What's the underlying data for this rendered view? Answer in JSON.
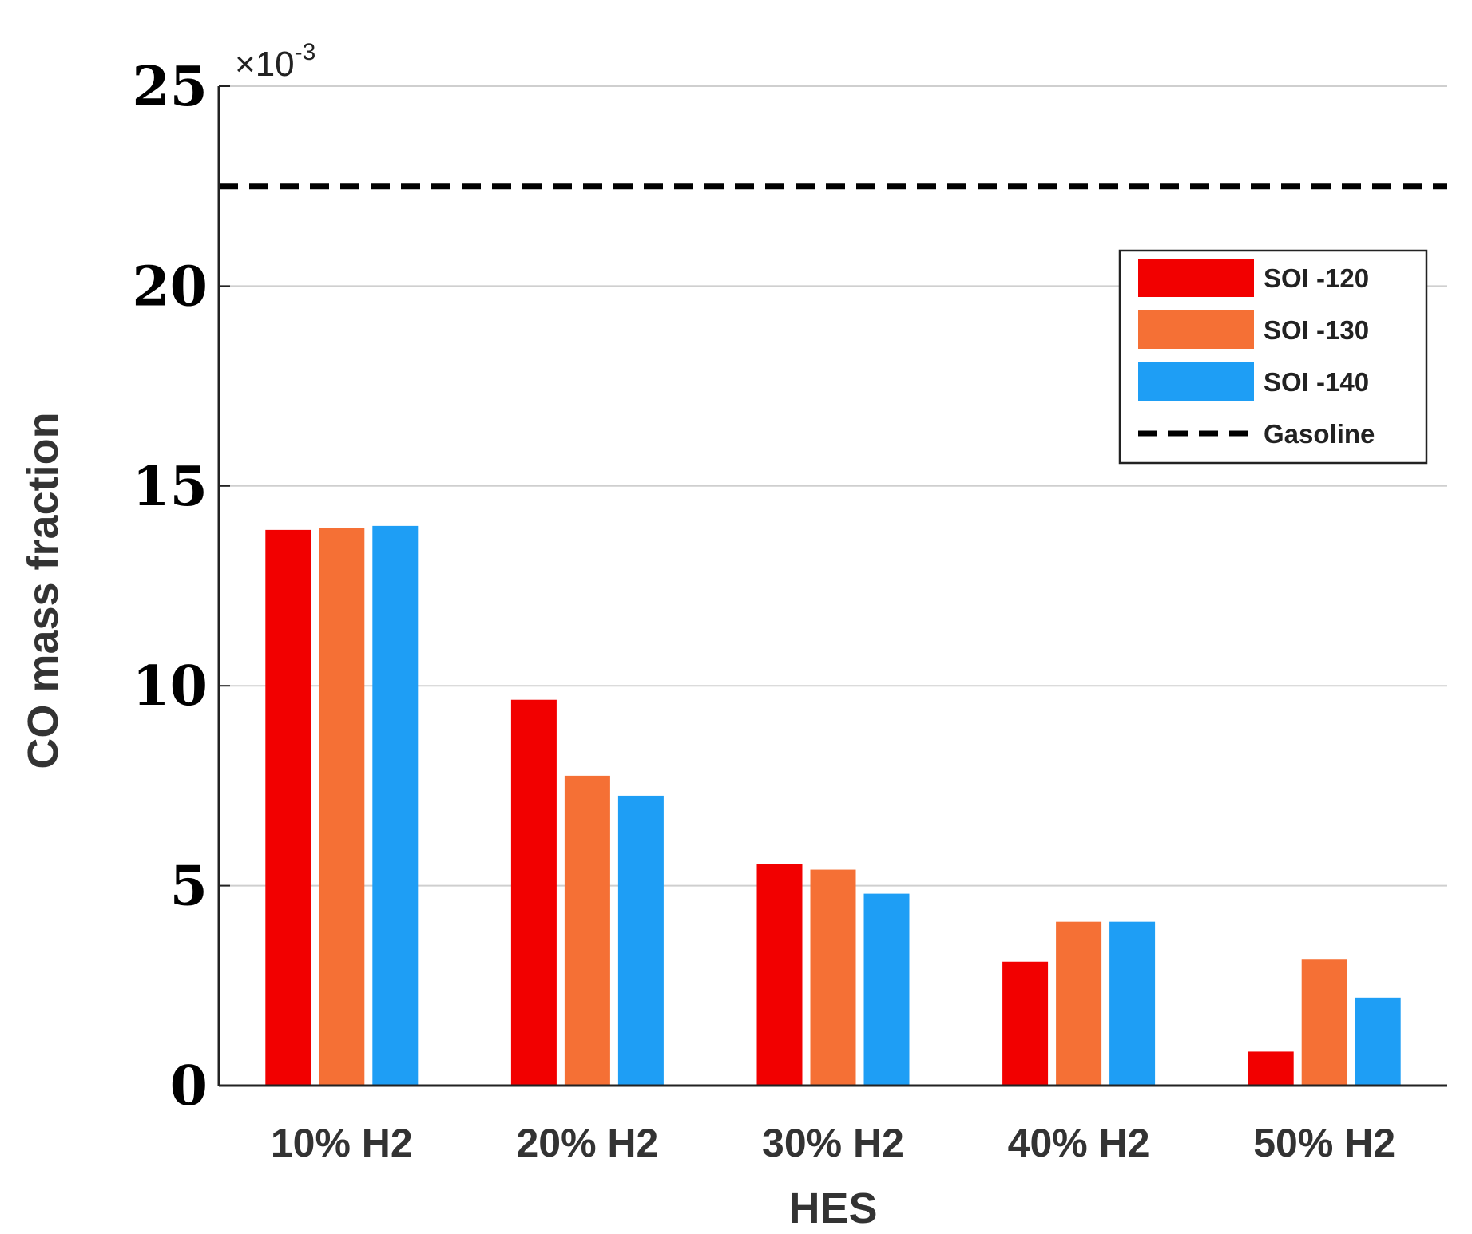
{
  "chart_data": {
    "type": "bar",
    "title": "",
    "xlabel": "HES",
    "ylabel": "CO mass fraction",
    "y_multiplier_symbol": "×",
    "y_multiplier_base": "10",
    "y_multiplier_exponent": "-3",
    "ylim": [
      0,
      25
    ],
    "yticks": [
      "0",
      "5",
      "10",
      "15",
      "20",
      "25"
    ],
    "grid": "horizontal",
    "legend_position": "top-right",
    "categories": [
      "10% H2",
      "20% H2",
      "30% H2",
      "40% H2",
      "50% H2"
    ],
    "series": [
      {
        "name": "SOI -120",
        "color": "#f20000",
        "values": [
          13.9,
          9.65,
          5.55,
          3.1,
          0.85
        ]
      },
      {
        "name": "SOI -130",
        "color": "#f57035",
        "values": [
          13.95,
          7.75,
          5.4,
          4.1,
          3.15
        ]
      },
      {
        "name": "SOI -140",
        "color": "#1e9ef5",
        "values": [
          14.0,
          7.25,
          4.8,
          4.1,
          2.2
        ]
      }
    ],
    "reference_lines": [
      {
        "name": "Gasoline",
        "value": 22.5,
        "style": "dashed",
        "color": "#000000"
      }
    ]
  }
}
